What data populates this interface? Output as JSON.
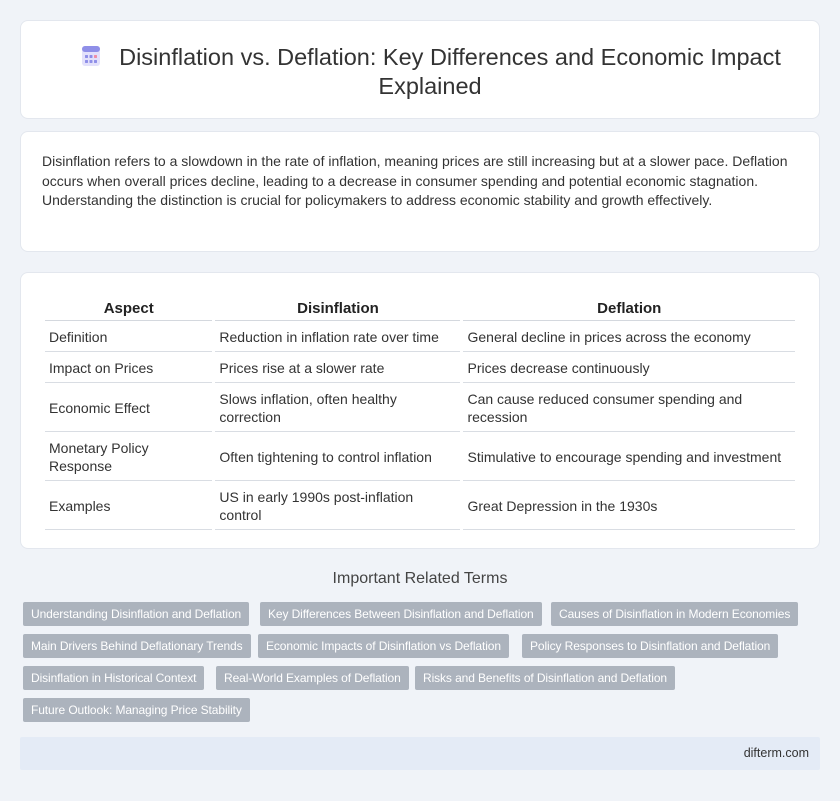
{
  "header": {
    "title": "Disinflation vs. Deflation: Key Differences and Economic Impact Explained",
    "icon": "document-icon"
  },
  "intro": {
    "text": "Disinflation refers to a slowdown in the rate of inflation, meaning prices are still increasing but at a slower pace. Deflation occurs when overall prices decline, leading to a decrease in consumer spending and potential economic stagnation. Understanding the distinction is crucial for policymakers to address economic stability and growth effectively."
  },
  "table": {
    "headers": [
      "Aspect",
      "Disinflation",
      "Deflation"
    ],
    "rows": [
      [
        "Definition",
        "Reduction in inflation rate over time",
        "General decline in prices across the economy"
      ],
      [
        "Impact on Prices",
        "Prices rise at a slower rate",
        "Prices decrease continuously"
      ],
      [
        "Economic Effect",
        "Slows inflation, often healthy correction",
        "Can cause reduced consumer spending and recession"
      ],
      [
        "Monetary Policy Response",
        "Often tightening to control inflation",
        "Stimulative to encourage spending and investment"
      ],
      [
        "Examples",
        "US in early 1990s post-inflation control",
        "Great Depression in the 1930s"
      ]
    ]
  },
  "related": {
    "title": "Important Related Terms",
    "tags": [
      "Understanding Disinflation and Deflation",
      "Key Differences Between Disinflation and Deflation",
      "Causes of Disinflation in Modern Economies",
      "Main Drivers Behind Deflationary Trends",
      "Economic Impacts of Disinflation vs Deflation",
      "Policy Responses to Disinflation and Deflation",
      "Disinflation in Historical Context",
      "Real-World Examples of Deflation",
      "Risks and Benefits of Disinflation and Deflation",
      "Future Outlook: Managing Price Stability"
    ]
  },
  "footer": {
    "site": "difterm.com"
  },
  "colors": {
    "background": "#f0f3f8",
    "tag": "#acb3bd",
    "footer": "#e4ebf6",
    "icon_accent": "#7b83e6"
  }
}
